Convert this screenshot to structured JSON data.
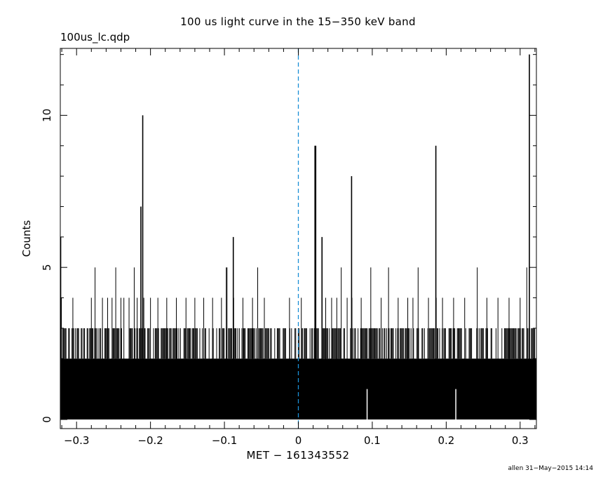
{
  "header": {
    "title": "100 us light curve in the 15−350 keV band",
    "file_label": "100us_lc.qdp"
  },
  "footer": {
    "stamp": "allen 31−May−2015 14:14"
  },
  "chart_data": {
    "type": "bar",
    "title": "100 us light curve in the 15−350 keV band",
    "xlabel": "MET − 161343552",
    "ylabel": "Counts",
    "xlim": [
      -0.322,
      0.322
    ],
    "ylim": [
      -0.3,
      12.2
    ],
    "x_ticks": [
      -0.3,
      -0.2,
      -0.1,
      0,
      0.1,
      0.2,
      0.3
    ],
    "x_tick_labels": [
      "−0.3",
      "−0.2",
      "−0.1",
      "0",
      "0.1",
      "0.2",
      "0.3"
    ],
    "y_ticks": [
      0,
      5,
      10
    ],
    "y_tick_labels": [
      "0",
      "5",
      "10"
    ],
    "bin_width": 0.0001,
    "baseline_level": 2,
    "reference_line": {
      "x": 0,
      "style": "dashed",
      "color": "#1a8fd6"
    },
    "series": [
      {
        "values_x": [
          -0.3215,
          -0.3205,
          -0.305,
          -0.28,
          -0.275,
          -0.265,
          -0.258,
          -0.252,
          -0.247,
          -0.24,
          -0.236,
          -0.229,
          -0.222,
          -0.218,
          -0.213,
          -0.2105,
          -0.209,
          -0.2,
          -0.19,
          -0.178,
          -0.165,
          -0.152,
          -0.14,
          -0.128,
          -0.116,
          -0.104,
          -0.0975,
          -0.0965,
          -0.088,
          -0.0875,
          -0.075,
          -0.062,
          -0.055,
          -0.046,
          -0.012,
          0.004,
          0.0225,
          0.0235,
          0.032,
          0.037,
          0.045,
          0.052,
          0.058,
          0.066,
          0.072,
          0.0725,
          0.085,
          0.098,
          0.112,
          0.122,
          0.135,
          0.148,
          0.155,
          0.162,
          0.176,
          0.186,
          0.1865,
          0.195,
          0.21,
          0.225,
          0.242,
          0.255,
          0.27,
          0.285,
          0.3,
          0.309,
          0.3125
        ],
        "values_y": [
          6,
          4,
          4,
          4,
          5,
          4,
          4,
          4,
          5,
          4,
          4,
          4,
          5,
          4,
          7,
          10,
          4,
          4,
          4,
          4,
          4,
          4,
          4,
          4,
          4,
          4,
          5,
          5,
          6,
          4,
          4,
          4,
          5,
          4,
          4,
          4,
          9,
          9,
          6,
          4,
          4,
          4,
          5,
          4,
          8,
          4,
          4,
          5,
          4,
          5,
          4,
          4,
          4,
          5,
          4,
          9,
          4,
          4,
          4,
          4,
          5,
          4,
          4,
          4,
          4,
          5,
          12
        ],
        "gaps_x": [
          0.093,
          0.213
        ]
      }
    ],
    "grid": false,
    "legend": "none"
  }
}
